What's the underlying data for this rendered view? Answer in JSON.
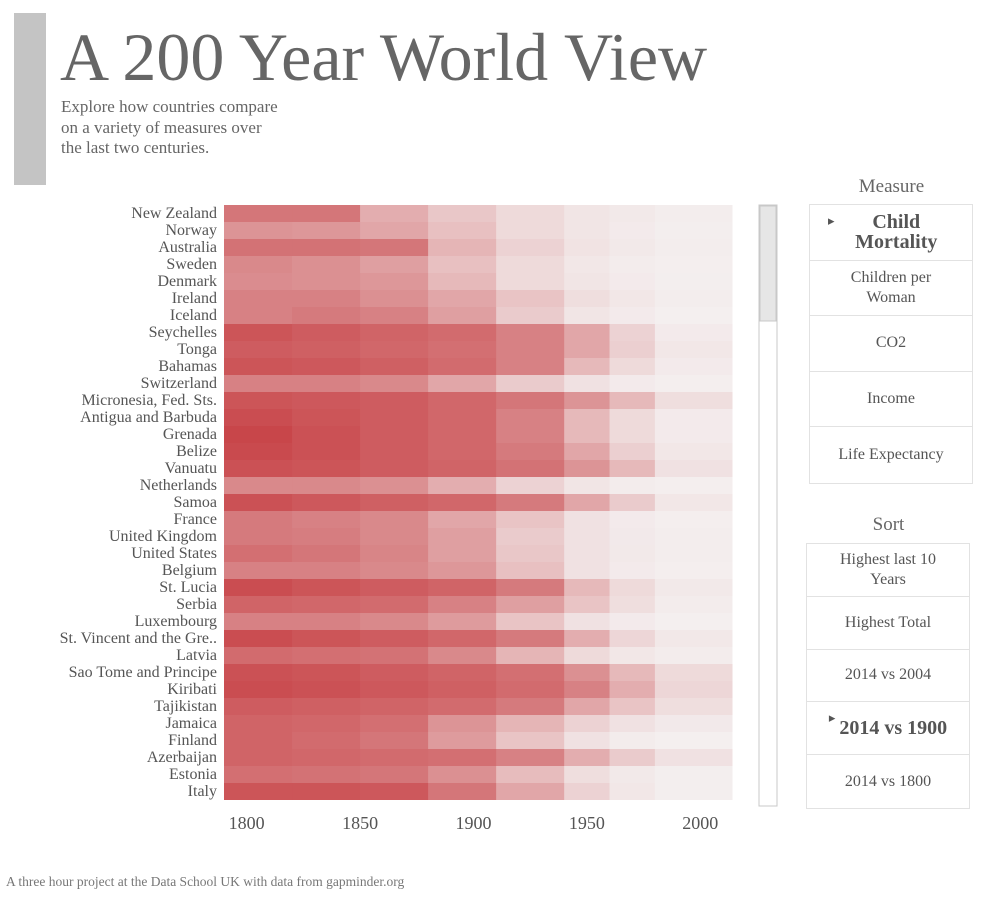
{
  "header": {
    "title": "A 200 Year World View",
    "subtitle": "Explore how countries compare on a variety of measures over the last two centuries."
  },
  "chart_data": {
    "type": "heatmap",
    "xlim": [
      1790,
      2014
    ],
    "xticks": [
      1800,
      1850,
      1900,
      1950,
      2000
    ],
    "bins": [
      1790,
      1820,
      1850,
      1880,
      1910,
      1940,
      1960,
      1980,
      2014
    ],
    "color_low": "#f4f0f0",
    "color_high": "#c8464a",
    "rows": [
      {
        "name": "New Zealand",
        "values": [
          330,
          330,
          180,
          110,
          60,
          30,
          20,
          8
        ]
      },
      {
        "name": "Norway",
        "values": [
          250,
          240,
          200,
          130,
          60,
          30,
          15,
          6
        ]
      },
      {
        "name": "Australia",
        "values": [
          340,
          340,
          330,
          160,
          80,
          35,
          20,
          7
        ]
      },
      {
        "name": "Sweden",
        "values": [
          280,
          260,
          220,
          130,
          60,
          25,
          12,
          5
        ]
      },
      {
        "name": "Denmark",
        "values": [
          270,
          260,
          240,
          150,
          60,
          30,
          15,
          6
        ]
      },
      {
        "name": "Ireland",
        "values": [
          300,
          300,
          260,
          200,
          120,
          50,
          25,
          7
        ]
      },
      {
        "name": "Iceland",
        "values": [
          300,
          320,
          300,
          220,
          100,
          30,
          15,
          4
        ]
      },
      {
        "name": "Seychelles",
        "values": [
          420,
          400,
          380,
          360,
          300,
          200,
          80,
          15
        ]
      },
      {
        "name": "Tonga",
        "values": [
          400,
          390,
          370,
          350,
          300,
          200,
          90,
          25
        ]
      },
      {
        "name": "Bahamas",
        "values": [
          420,
          410,
          390,
          360,
          300,
          150,
          60,
          15
        ]
      },
      {
        "name": "Switzerland",
        "values": [
          300,
          300,
          280,
          200,
          100,
          40,
          15,
          5
        ]
      },
      {
        "name": "Micronesia, Fed. Sts.",
        "values": [
          420,
          410,
          400,
          370,
          330,
          250,
          150,
          50
        ]
      },
      {
        "name": "Antigua and Barbuda",
        "values": [
          440,
          420,
          400,
          370,
          300,
          150,
          60,
          15
        ]
      },
      {
        "name": "Grenada",
        "values": [
          460,
          430,
          400,
          370,
          300,
          150,
          60,
          15
        ]
      },
      {
        "name": "Belize",
        "values": [
          450,
          430,
          400,
          370,
          320,
          200,
          90,
          25
        ]
      },
      {
        "name": "Vanuatu",
        "values": [
          430,
          420,
          400,
          380,
          340,
          250,
          150,
          40
        ]
      },
      {
        "name": "Netherlands",
        "values": [
          280,
          280,
          260,
          180,
          80,
          30,
          12,
          5
        ]
      },
      {
        "name": "Samoa",
        "values": [
          430,
          410,
          390,
          370,
          320,
          200,
          100,
          25
        ]
      },
      {
        "name": "France",
        "values": [
          320,
          300,
          280,
          200,
          120,
          40,
          15,
          5
        ]
      },
      {
        "name": "United Kingdom",
        "values": [
          320,
          310,
          280,
          220,
          100,
          40,
          18,
          7
        ]
      },
      {
        "name": "United States",
        "values": [
          350,
          330,
          290,
          220,
          110,
          40,
          20,
          8
        ]
      },
      {
        "name": "Belgium",
        "values": [
          300,
          300,
          280,
          240,
          130,
          40,
          15,
          5
        ]
      },
      {
        "name": "St. Lucia",
        "values": [
          440,
          420,
          400,
          380,
          320,
          150,
          60,
          20
        ]
      },
      {
        "name": "Serbia",
        "values": [
          380,
          370,
          360,
          300,
          220,
          120,
          50,
          12
        ]
      },
      {
        "name": "Luxembourg",
        "values": [
          300,
          300,
          280,
          230,
          120,
          40,
          15,
          4
        ]
      },
      {
        "name": "St. Vincent and the Gre..",
        "values": [
          440,
          420,
          400,
          370,
          320,
          180,
          70,
          22
        ]
      },
      {
        "name": "Latvia",
        "values": [
          360,
          350,
          340,
          280,
          160,
          60,
          25,
          10
        ]
      },
      {
        "name": "Sao Tome and Principe",
        "values": [
          430,
          420,
          400,
          380,
          350,
          260,
          150,
          60
        ]
      },
      {
        "name": "Kiribati",
        "values": [
          440,
          430,
          410,
          390,
          360,
          300,
          180,
          70
        ]
      },
      {
        "name": "Tajikistan",
        "values": [
          400,
          390,
          380,
          360,
          320,
          200,
          120,
          50
        ]
      },
      {
        "name": "Jamaica",
        "values": [
          380,
          370,
          350,
          250,
          160,
          80,
          40,
          18
        ]
      },
      {
        "name": "Finland",
        "values": [
          380,
          360,
          330,
          230,
          120,
          40,
          10,
          4
        ]
      },
      {
        "name": "Azerbaijan",
        "values": [
          380,
          370,
          360,
          350,
          300,
          180,
          100,
          40
        ]
      },
      {
        "name": "Estonia",
        "values": [
          350,
          340,
          330,
          260,
          140,
          50,
          20,
          6
        ]
      },
      {
        "name": "Italy",
        "values": [
          420,
          420,
          410,
          330,
          200,
          80,
          25,
          6
        ]
      }
    ]
  },
  "measure": {
    "title": "Measure",
    "items": [
      {
        "label": "Child Mortality",
        "selected": true
      },
      {
        "label": "Children per Woman",
        "selected": false
      },
      {
        "label": "CO2",
        "selected": false
      },
      {
        "label": "Income",
        "selected": false
      },
      {
        "label": "Life Expectancy",
        "selected": false
      }
    ]
  },
  "sort": {
    "title": "Sort",
    "items": [
      {
        "label": "Highest last 10 Years",
        "selected": false
      },
      {
        "label": "Highest Total",
        "selected": false
      },
      {
        "label": "2014 vs 2004",
        "selected": false
      },
      {
        "label": "2014 vs 1900",
        "selected": true
      },
      {
        "label": "2014 vs 1800",
        "selected": false
      }
    ]
  },
  "footer": "A three hour project at the Data School UK with data from gapminder.org"
}
